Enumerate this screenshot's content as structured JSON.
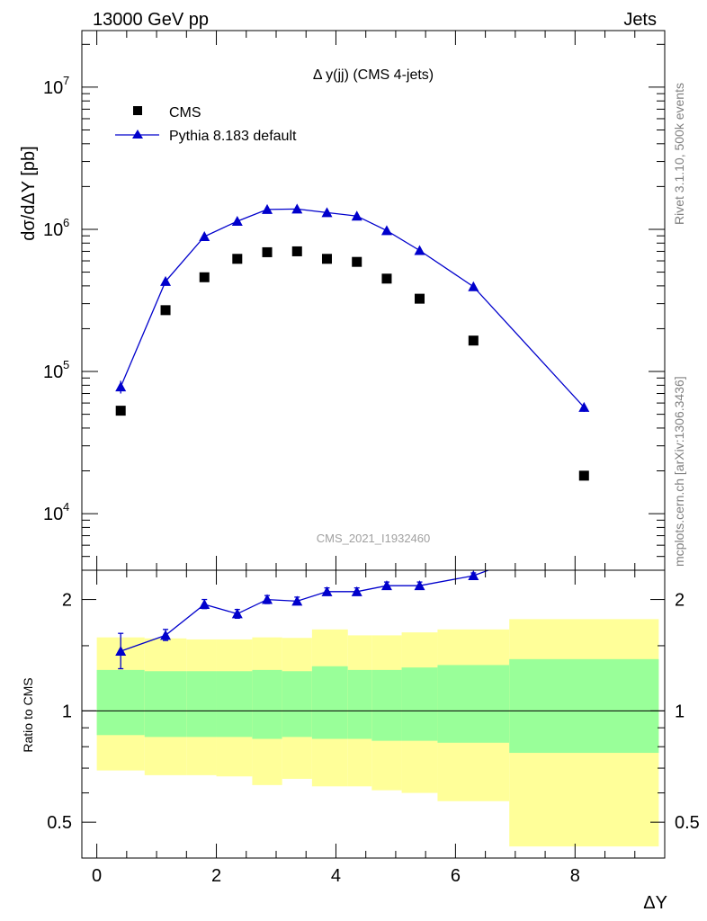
{
  "header": {
    "energy_label": "13000 GeV pp",
    "process_label": "Jets"
  },
  "side_labels": {
    "rivet": "Rivet 3.1.10,  500k events",
    "mcplots": "mcplots.cern.ch [arXiv:1306.3436]"
  },
  "watermark": "CMS_2021_I1932460",
  "colors": {
    "mc": "#0000cc",
    "data": "#000000",
    "band_inner": "#99ff99",
    "band_outer": "#ffff99",
    "text_grey": "#808080"
  },
  "chart_data": [
    {
      "panel": "main",
      "type": "scatter",
      "title": "Δ y(jj) (CMS 4-jets)",
      "xlabel": "ΔY",
      "ylabel": "dσ/dΔY [pb]",
      "yscale": "log",
      "xlim": [
        -0.25,
        9.5
      ],
      "ylim": [
        4000,
        25000000
      ],
      "ytick_labels": [
        "10",
        "10",
        "10",
        "10"
      ],
      "ytick_exponents": [
        "4",
        "5",
        "6",
        "7"
      ],
      "legend": [
        "CMS",
        "Pythia 8.183 default"
      ],
      "series": [
        {
          "name": "CMS",
          "marker": "square",
          "x": [
            0.4,
            1.15,
            1.8,
            2.35,
            2.85,
            3.35,
            3.85,
            4.35,
            4.85,
            5.4,
            6.3,
            8.15
          ],
          "values": [
            53000,
            270000,
            460000,
            620000,
            690000,
            700000,
            620000,
            590000,
            450000,
            325000,
            165000,
            18500
          ]
        },
        {
          "name": "Pythia 8.183 default",
          "marker": "triangle",
          "x": [
            0.4,
            1.15,
            1.8,
            2.35,
            2.85,
            3.35,
            3.85,
            4.35,
            4.85,
            5.4,
            6.3,
            8.15
          ],
          "values": [
            78000,
            430000,
            890000,
            1140000,
            1380000,
            1390000,
            1310000,
            1240000,
            980000,
            710000,
            395000,
            56000
          ],
          "err_low": [
            70000,
            420000,
            875000,
            1125000,
            1365000,
            1375000,
            1295000,
            1225000,
            965000,
            700000,
            385000,
            52000
          ],
          "err_high": [
            86000,
            440000,
            905000,
            1155000,
            1395000,
            1405000,
            1325000,
            1255000,
            995000,
            720000,
            405000,
            60000
          ]
        }
      ]
    },
    {
      "panel": "ratio",
      "type": "line",
      "xlabel": "ΔY",
      "ylabel": "Ratio to CMS",
      "yscale": "log",
      "xlim": [
        -0.25,
        9.5
      ],
      "ylim": [
        0.4,
        2.4
      ],
      "ytick_labels": [
        "0.5",
        "1",
        "2"
      ],
      "xtick_labels": [
        "0",
        "2",
        "4",
        "6",
        "8"
      ],
      "bands": {
        "bin_edges": [
          0.0,
          0.8,
          1.5,
          2.0,
          2.6,
          3.1,
          3.6,
          4.2,
          4.6,
          5.1,
          5.7,
          6.9,
          9.4
        ],
        "outer_low": [
          0.69,
          0.67,
          0.67,
          0.665,
          0.63,
          0.655,
          0.625,
          0.625,
          0.61,
          0.6,
          0.57,
          0.43
        ],
        "outer_high": [
          1.58,
          1.57,
          1.56,
          1.56,
          1.58,
          1.575,
          1.66,
          1.6,
          1.6,
          1.63,
          1.66,
          1.77
        ],
        "inner_low": [
          0.86,
          0.85,
          0.85,
          0.85,
          0.84,
          0.85,
          0.84,
          0.84,
          0.83,
          0.83,
          0.82,
          0.77
        ],
        "inner_high": [
          1.29,
          1.28,
          1.28,
          1.28,
          1.29,
          1.28,
          1.32,
          1.29,
          1.29,
          1.31,
          1.33,
          1.38
        ]
      },
      "series": [
        {
          "name": "Pythia 8.183 default / CMS",
          "x": [
            0.4,
            1.15,
            1.8,
            2.35,
            2.85,
            3.35,
            3.85,
            4.35,
            4.85,
            5.4,
            6.3,
            6.55
          ],
          "values": [
            1.45,
            1.6,
            1.94,
            1.83,
            2.0,
            1.98,
            2.1,
            2.1,
            2.18,
            2.18,
            2.32,
            2.4
          ],
          "err_low": [
            1.3,
            1.55,
            1.89,
            1.78,
            1.95,
            1.94,
            2.06,
            2.06,
            2.13,
            2.13,
            2.29,
            2.4
          ],
          "err_high": [
            1.62,
            1.66,
            2.0,
            1.88,
            2.05,
            2.03,
            2.15,
            2.15,
            2.23,
            2.23,
            2.36,
            2.4
          ]
        }
      ]
    }
  ]
}
